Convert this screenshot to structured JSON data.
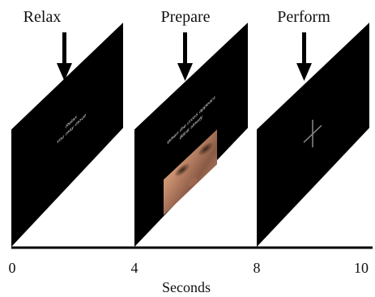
{
  "phases": [
    {
      "label": "Relax",
      "screen_lines": [
        "Relax",
        "You may move"
      ]
    },
    {
      "label": "Prepare",
      "screen_lines": [
        "When the cross appears",
        "Blink slowly"
      ]
    },
    {
      "label": "Perform",
      "screen_lines": []
    }
  ],
  "axis": {
    "title": "Seconds",
    "ticks": [
      "0",
      "4",
      "8",
      "10"
    ]
  },
  "colors": {
    "screen": "#000000",
    "cross": "#8a8a8a",
    "axis": "#000000"
  }
}
